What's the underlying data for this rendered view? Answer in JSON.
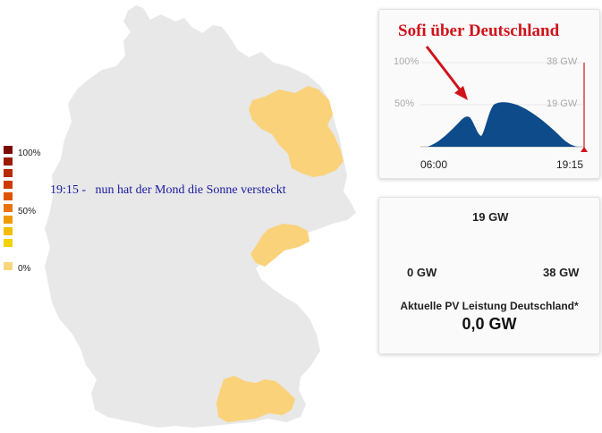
{
  "annotation": {
    "title": "Sofi über Deutschland",
    "map_text": "19:15 -   nun hat der Mond die Sonne versteckt"
  },
  "legend": {
    "labels": [
      "100%",
      "50%",
      "0%"
    ],
    "colors": [
      "#7a0a00",
      "#9c1a00",
      "#b82a00",
      "#cc3a00",
      "#de5200",
      "#ea7200",
      "#f09a00",
      "#f3bd00",
      "#f6d100",
      "#f8d680"
    ]
  },
  "map": {
    "base_color": "#e8e8e8",
    "highlight_color": "#fad27a",
    "highlighted_regions": [
      "brandenburg-region",
      "sachsen-region",
      "bayern-south-region"
    ]
  },
  "chart": {
    "y_left_top": "100%",
    "y_left_mid": "50%",
    "y_right_top": "38 GW",
    "y_right_mid": "19 GW",
    "x_start": "06:00",
    "x_end": "19:15",
    "fill_color": "#0d4b8a",
    "marker_color": "#d0121a"
  },
  "gauge": {
    "min_label": "0 GW",
    "mid_label": "19 GW",
    "max_label": "38 GW",
    "caption": "Aktuelle PV Leistung Deutschland*",
    "value": "0,0 GW",
    "level": 0
  }
}
